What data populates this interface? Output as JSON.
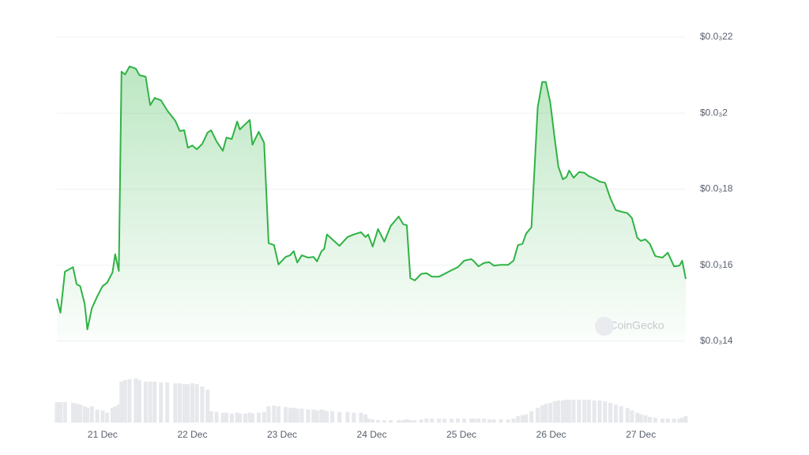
{
  "chart_data": {
    "type": "line",
    "color": "#2fb344",
    "volume_color": "#e6e8ec",
    "grid": true,
    "watermark": "CoinGecko",
    "xlim": [
      20.49,
      27.5
    ],
    "xticks": [
      {
        "value": 21,
        "label": "21 Dec"
      },
      {
        "value": 22,
        "label": "22 Dec"
      },
      {
        "value": 23,
        "label": "23 Dec"
      },
      {
        "value": 24,
        "label": "24 Dec"
      },
      {
        "value": 25,
        "label": "25 Dec"
      },
      {
        "value": 26,
        "label": "26 Dec"
      },
      {
        "value": 27,
        "label": "27 Dec"
      }
    ],
    "ylim": [
      0.00014,
      0.00022
    ],
    "yticks": [
      {
        "value": 0.00014,
        "label": "$0.0₃14"
      },
      {
        "value": 0.00016,
        "label": "$0.0₃16"
      },
      {
        "value": 0.00018,
        "label": "$0.0₃18"
      },
      {
        "value": 0.0002,
        "label": "$0.0₃2"
      },
      {
        "value": 0.00022,
        "label": "$0.0₃22"
      }
    ],
    "x": [
      20.49,
      20.53,
      20.58,
      20.67,
      20.71,
      20.75,
      20.8,
      20.83,
      20.88,
      20.94,
      21.0,
      21.05,
      21.11,
      21.14,
      21.18,
      21.21,
      21.25,
      21.3,
      21.37,
      21.41,
      21.48,
      21.53,
      21.58,
      21.65,
      21.72,
      21.81,
      21.86,
      21.91,
      21.95,
      22.0,
      22.05,
      22.11,
      22.17,
      22.21,
      22.27,
      22.34,
      22.38,
      22.44,
      22.5,
      22.53,
      22.59,
      22.64,
      22.67,
      22.74,
      22.8,
      22.85,
      22.91,
      22.96,
      23.04,
      23.09,
      23.13,
      23.17,
      23.22,
      23.29,
      23.35,
      23.39,
      23.44,
      23.47,
      23.5,
      23.56,
      23.64,
      23.73,
      23.8,
      23.88,
      23.93,
      23.96,
      24.01,
      24.07,
      24.14,
      24.21,
      24.3,
      24.35,
      24.39,
      24.43,
      24.48,
      24.55,
      24.61,
      24.67,
      24.75,
      24.81,
      24.89,
      24.96,
      25.03,
      25.11,
      25.14,
      25.19,
      25.25,
      25.31,
      25.36,
      25.44,
      25.52,
      25.58,
      25.63,
      25.68,
      25.72,
      25.78,
      25.85,
      25.9,
      25.94,
      25.99,
      26.04,
      26.08,
      26.13,
      26.17,
      26.2,
      26.25,
      26.31,
      26.37,
      26.42,
      26.48,
      26.54,
      26.6,
      26.66,
      26.72,
      26.78,
      26.85,
      26.9,
      26.96,
      27.0,
      27.05,
      27.1,
      27.16,
      27.24,
      27.3,
      27.37,
      27.43,
      27.46,
      27.5
    ],
    "values": [
      0.0001512,
      0.0001475,
      0.0001583,
      0.0001595,
      0.000155,
      0.0001545,
      0.0001498,
      0.0001431,
      0.0001487,
      0.0001518,
      0.0001545,
      0.0001554,
      0.0001581,
      0.0001629,
      0.0001585,
      0.0002109,
      0.0002102,
      0.0002123,
      0.0002117,
      0.00021,
      0.0002096,
      0.0002021,
      0.000204,
      0.0002034,
      0.0002007,
      0.000198,
      0.0001953,
      0.0001955,
      0.0001909,
      0.0001915,
      0.0001905,
      0.0001919,
      0.0001949,
      0.0001955,
      0.0001926,
      0.0001901,
      0.0001936,
      0.0001932,
      0.0001978,
      0.0001957,
      0.0001971,
      0.0001982,
      0.0001917,
      0.0001951,
      0.0001922,
      0.0001658,
      0.0001653,
      0.0001602,
      0.0001622,
      0.0001626,
      0.0001637,
      0.0001607,
      0.0001626,
      0.000162,
      0.0001622,
      0.000161,
      0.0001637,
      0.0001643,
      0.0001681,
      0.0001668,
      0.0001651,
      0.0001674,
      0.0001681,
      0.0001687,
      0.0001674,
      0.0001681,
      0.0001649,
      0.0001695,
      0.0001662,
      0.0001703,
      0.0001728,
      0.0001708,
      0.0001705,
      0.0001566,
      0.000156,
      0.0001577,
      0.0001579,
      0.000157,
      0.000157,
      0.0001577,
      0.0001587,
      0.0001595,
      0.0001612,
      0.0001616,
      0.000161,
      0.0001597,
      0.0001606,
      0.0001608,
      0.0001599,
      0.0001601,
      0.0001601,
      0.0001612,
      0.0001653,
      0.0001656,
      0.0001683,
      0.00017,
      0.0002015,
      0.0002082,
      0.0002082,
      0.0002028,
      0.0001932,
      0.0001859,
      0.0001826,
      0.0001832,
      0.0001849,
      0.000183,
      0.0001845,
      0.0001843,
      0.0001834,
      0.0001828,
      0.000182,
      0.0001817,
      0.0001776,
      0.0001745,
      0.0001741,
      0.0001737,
      0.0001724,
      0.0001672,
      0.0001664,
      0.0001668,
      0.0001656,
      0.0001624,
      0.000162,
      0.0001633,
      0.0001597,
      0.0001599,
      0.0001612,
      0.0001564
    ],
    "volumes": [
      25,
      25,
      25,
      24,
      23,
      22,
      20,
      18,
      20,
      16,
      15,
      12,
      18,
      20,
      22,
      50,
      52,
      53,
      54,
      52,
      50,
      50,
      50,
      49,
      49,
      48,
      48,
      47,
      47,
      48,
      47,
      44,
      40,
      14,
      13,
      12,
      12,
      11,
      12,
      11,
      11,
      12,
      11,
      12,
      13,
      20,
      21,
      20,
      19,
      18,
      18,
      17,
      17,
      16,
      16,
      15,
      16,
      15,
      14,
      14,
      13,
      13,
      12,
      12,
      10,
      5,
      4,
      3,
      3,
      3,
      3,
      3,
      4,
      3,
      3,
      4,
      5,
      5,
      5,
      5,
      5,
      5,
      5,
      5,
      5,
      5,
      5,
      4,
      4,
      4,
      4,
      5,
      8,
      9,
      10,
      14,
      18,
      21,
      23,
      24,
      26,
      27,
      27,
      28,
      28,
      28,
      28,
      28,
      28,
      27,
      27,
      26,
      24,
      22,
      20,
      18,
      15,
      12,
      10,
      9,
      7,
      6,
      5,
      5,
      5,
      5,
      6,
      8
    ]
  }
}
